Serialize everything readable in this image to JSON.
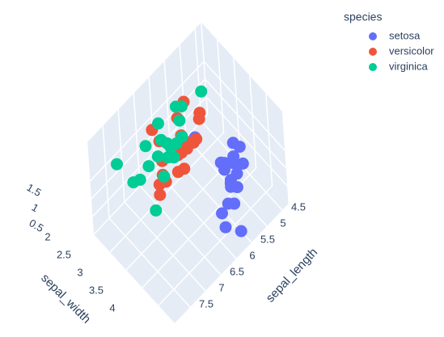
{
  "chart_data": {
    "type": "scatter3d",
    "legend_title": "species",
    "x_label": "sepal_length",
    "y_label": "sepal_width",
    "xlim": [
      4.3,
      8
    ],
    "ylim": [
      2,
      4.5
    ],
    "zlim": [
      0,
      2.6
    ],
    "xticks": [
      4.5,
      5,
      5.5,
      6,
      6.5,
      7,
      7.5
    ],
    "yticks": [
      2,
      2.5,
      3,
      3.5,
      4
    ],
    "zticks": [
      0.5,
      1,
      1.5
    ],
    "grid": true,
    "series": [
      {
        "name": "setosa",
        "color": "#636efa",
        "x": [
          5.1,
          4.9,
          4.7,
          4.6,
          5.0,
          5.4,
          4.6,
          5.0,
          4.4,
          4.9,
          5.4,
          4.8,
          4.8,
          4.3,
          5.8,
          5.7,
          5.4,
          5.1,
          5.7,
          5.0
        ],
        "y": [
          3.5,
          3.0,
          3.2,
          3.1,
          3.6,
          3.9,
          3.4,
          3.4,
          2.9,
          3.1,
          3.7,
          3.4,
          3.0,
          3.0,
          4.0,
          4.4,
          3.9,
          3.5,
          3.8,
          2.3
        ],
        "z": [
          0.2,
          0.2,
          0.2,
          0.2,
          0.2,
          0.4,
          0.3,
          0.2,
          0.2,
          0.1,
          0.2,
          0.2,
          0.1,
          0.1,
          0.2,
          0.4,
          0.4,
          0.3,
          0.3,
          0.3
        ]
      },
      {
        "name": "versicolor",
        "color": "#ef553b",
        "x": [
          7.0,
          6.4,
          6.9,
          5.5,
          6.5,
          5.7,
          6.3,
          4.9,
          6.6,
          5.2,
          5.0,
          5.9,
          6.0,
          6.1,
          5.6,
          6.7,
          5.6,
          5.8,
          6.2,
          5.6
        ],
        "y": [
          3.2,
          3.2,
          3.1,
          2.3,
          2.8,
          2.8,
          3.3,
          2.4,
          2.9,
          2.7,
          2.0,
          3.0,
          2.2,
          2.9,
          2.9,
          3.1,
          3.0,
          2.7,
          2.2,
          2.5
        ],
        "z": [
          1.4,
          1.5,
          1.5,
          1.3,
          1.5,
          1.3,
          1.6,
          1.0,
          1.3,
          1.4,
          1.0,
          1.5,
          1.0,
          1.4,
          1.3,
          1.4,
          1.5,
          1.0,
          1.5,
          1.1
        ]
      },
      {
        "name": "virginica",
        "color": "#00cc96",
        "x": [
          6.3,
          5.8,
          7.1,
          6.3,
          6.5,
          7.6,
          4.9,
          7.3,
          6.7,
          7.2,
          6.5,
          6.4,
          6.8,
          5.7,
          5.8,
          6.4,
          6.5,
          7.7,
          7.7,
          6.0
        ],
        "y": [
          3.3,
          2.7,
          3.0,
          2.9,
          3.0,
          3.0,
          2.5,
          2.9,
          2.5,
          3.6,
          3.2,
          2.7,
          3.0,
          2.5,
          2.8,
          3.2,
          3.0,
          3.8,
          2.6,
          2.2
        ],
        "z": [
          2.5,
          1.9,
          2.1,
          1.8,
          2.2,
          2.1,
          1.7,
          1.8,
          1.8,
          2.5,
          2.0,
          1.9,
          2.1,
          2.0,
          2.4,
          2.3,
          1.8,
          2.2,
          2.3,
          1.5
        ]
      }
    ]
  }
}
